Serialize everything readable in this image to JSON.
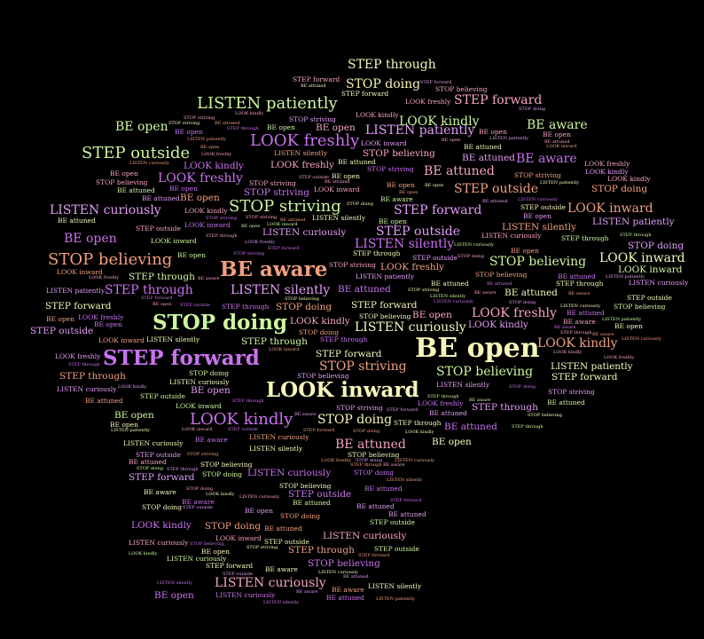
{
  "colors": {
    "background": "#000000",
    "cream": "#f5f6b9",
    "green": "#cdf69f",
    "salmon": "#f0a07f",
    "pink": "#f6a4bf",
    "violet": "#c972ef",
    "orchid": "#e49df8"
  },
  "large_words": [
    {
      "text": "BE open",
      "color": "cream"
    },
    {
      "text": "LOOK inward",
      "color": "cream"
    },
    {
      "text": "STOP doing",
      "color": "green"
    },
    {
      "text": "STEP forward",
      "color": "violet"
    },
    {
      "text": "BE aware",
      "color": "salmon"
    },
    {
      "text": "LISTEN patiently",
      "color": "green"
    },
    {
      "text": "STOP believing",
      "color": "salmon"
    },
    {
      "text": "LOOK freshly",
      "color": "violet"
    },
    {
      "text": "STEP outside",
      "color": "green"
    },
    {
      "text": "STOP striving",
      "color": "green"
    },
    {
      "text": "LOOK kindly",
      "color": "violet"
    },
    {
      "text": "LISTEN curiously",
      "color": "pink"
    }
  ],
  "small_words": [
    "BE open",
    "STOP doing",
    "LISTEN patiently",
    "BE aware",
    "BE attuned",
    "STEP outside",
    "STOP believing",
    "LOOK inward",
    "STEP forward",
    "LISTEN silently",
    "LOOK freshly",
    "STOP striving",
    "LOOK kindly",
    "STEP through",
    "LISTEN curiously",
    "BE open",
    "STEP forward",
    "LOOK inward",
    "BE aware",
    "STOP doing",
    "LISTEN silently",
    "STEP through",
    "BE attuned",
    "LOOK kindly",
    "STOP believing",
    "LISTEN curiously",
    "STEP outside",
    "LOOK freshly",
    "BE open",
    "STOP striving",
    "LISTEN patiently",
    "STEP through",
    "BE aware",
    "LOOK inward",
    "BE attuned",
    "STOP doing",
    "LOOK kindly",
    "STEP forward",
    "LISTEN silently",
    "BE open",
    "STEP outside",
    "LOOK freshly",
    "STOP believing",
    "BE aware",
    "LISTEN patiently",
    "STEP through",
    "STOP striving",
    "BE attuned",
    "LOOK inward",
    "LISTEN curiously"
  ]
}
